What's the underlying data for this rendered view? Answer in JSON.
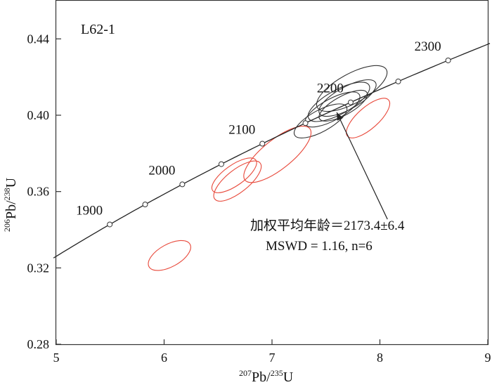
{
  "chart_data": {
    "type": "scatter",
    "title": "",
    "sample_label": "L62-1",
    "xlabel": {
      "pre": "207",
      "main": "Pb/",
      "pre2": "235",
      "main2": "U"
    },
    "ylabel": {
      "pre": "206",
      "main": "Pb/",
      "pre2": "238",
      "main2": "U"
    },
    "xlim": [
      5,
      9
    ],
    "ylim": [
      0.28,
      0.46
    ],
    "x_ticks": [
      5,
      6,
      7,
      8,
      9
    ],
    "y_ticks": [
      0.28,
      0.32,
      0.36,
      0.4,
      0.44
    ],
    "x_tick_labels": [
      "5",
      "6",
      "7",
      "8",
      "9"
    ],
    "y_tick_labels": [
      "0.28",
      "0.32",
      "0.36",
      "0.40",
      "0.44"
    ],
    "grid": false,
    "concordia": {
      "color": "#222222",
      "age_markers_ma": [
        1900,
        1950,
        2000,
        2050,
        2100,
        2150,
        2200,
        2250,
        2300
      ],
      "labeled_ages": [
        1900,
        2000,
        2100,
        2200,
        2300
      ],
      "label_text": [
        "1900",
        "2000",
        "2100",
        "2200",
        "2300"
      ]
    },
    "ellipses": [
      {
        "group": "concordant",
        "color": "#333333",
        "cx": 7.74,
        "cy": 0.414,
        "rx": 0.32,
        "ry": 0.0055,
        "angle_data": 0.031
      },
      {
        "group": "concordant",
        "color": "#333333",
        "cx": 7.62,
        "cy": 0.407,
        "rx": 0.28,
        "ry": 0.0045,
        "angle_data": 0.031
      },
      {
        "group": "concordant",
        "color": "#333333",
        "cx": 7.7,
        "cy": 0.409,
        "rx": 0.26,
        "ry": 0.0042,
        "angle_data": 0.031
      },
      {
        "group": "concordant",
        "color": "#333333",
        "cx": 7.56,
        "cy": 0.403,
        "rx": 0.25,
        "ry": 0.004,
        "angle_data": 0.031
      },
      {
        "group": "concordant",
        "color": "#333333",
        "cx": 7.45,
        "cy": 0.397,
        "rx": 0.24,
        "ry": 0.004,
        "angle_data": 0.031
      },
      {
        "group": "concordant",
        "color": "#333333",
        "cx": 7.66,
        "cy": 0.405,
        "rx": 0.22,
        "ry": 0.0035,
        "angle_data": 0.031
      },
      {
        "group": "discordant",
        "color": "#e8483a",
        "cx": 6.05,
        "cy": 0.3265,
        "rx": 0.19,
        "ry": 0.0042,
        "angle_data": 0.031
      },
      {
        "group": "discordant",
        "color": "#e8483a",
        "cx": 6.65,
        "cy": 0.3685,
        "rx": 0.2,
        "ry": 0.0038,
        "angle_data": 0.04
      },
      {
        "group": "discordant",
        "color": "#e8483a",
        "cx": 6.68,
        "cy": 0.3655,
        "rx": 0.21,
        "ry": 0.0042,
        "angle_data": 0.045
      },
      {
        "group": "discordant",
        "color": "#e8483a",
        "cx": 7.05,
        "cy": 0.3795,
        "rx": 0.3,
        "ry": 0.0055,
        "angle_data": 0.045
      },
      {
        "group": "discordant",
        "color": "#e8483a",
        "cx": 7.89,
        "cy": 0.3985,
        "rx": 0.19,
        "ry": 0.004,
        "angle_data": 0.05
      }
    ],
    "annotation": {
      "line1": "加权平均年龄＝2173.4±6.4",
      "line2": "MSWD = 1.16, n=6",
      "arrow_tip": [
        7.6,
        0.4015
      ],
      "arrow_tail": [
        8.07,
        0.3455
      ]
    }
  }
}
